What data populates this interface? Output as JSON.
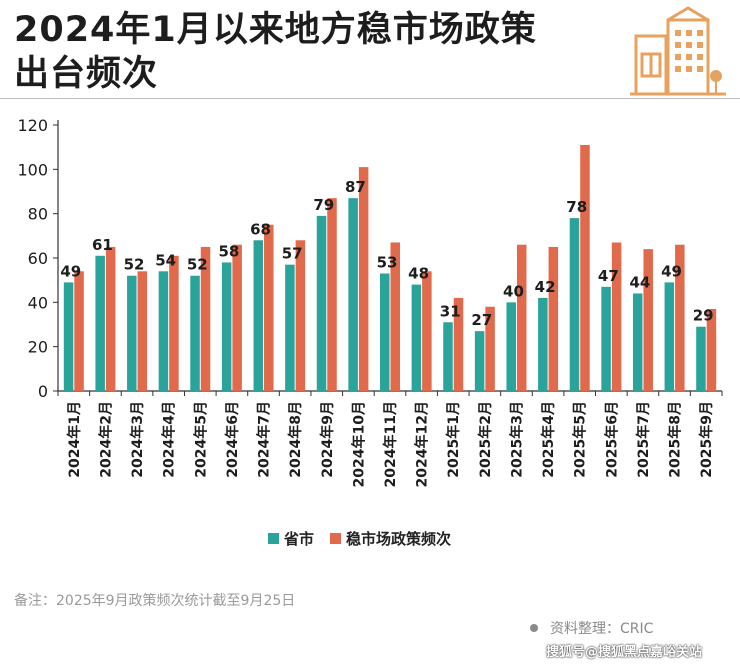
{
  "title": {
    "line1": "2024年1月以来地方稳市场政策",
    "line2": "出台频次"
  },
  "colors": {
    "teal": "#2aa39a",
    "orange": "#e06a4b",
    "logo": "#e8a25f"
  },
  "legend": {
    "series1": "省市",
    "series2": "稳市场政策频次"
  },
  "note": "备注：2025年9月政策频次统计截至9月25日",
  "source": "资料整理：CRIC",
  "watermark": "搜狐号@搜狐黑点嘉峪关站",
  "chart_data": {
    "type": "bar",
    "categories": [
      "2024年1月",
      "2024年2月",
      "2024年3月",
      "2024年4月",
      "2024年5月",
      "2024年6月",
      "2024年7月",
      "2024年8月",
      "2024年9月",
      "2024年10月",
      "2024年11月",
      "2024年12月",
      "2025年1月",
      "2025年2月",
      "2025年3月",
      "2025年4月",
      "2025年5月",
      "2025年6月",
      "2025年7月",
      "2025年8月",
      "2025年9月"
    ],
    "series": [
      {
        "name": "省市",
        "values": [
          49,
          61,
          52,
          54,
          52,
          58,
          68,
          57,
          79,
          87,
          53,
          48,
          31,
          27,
          40,
          42,
          78,
          47,
          44,
          49,
          29
        ],
        "labeled": true
      },
      {
        "name": "稳市场政策频次",
        "values": [
          54,
          65,
          54,
          61,
          65,
          66,
          75,
          68,
          87,
          101,
          67,
          54,
          42,
          38,
          66,
          65,
          111,
          67,
          64,
          66,
          37
        ],
        "labeled": false
      }
    ],
    "ylim": [
      0,
      120
    ],
    "yticks": [
      0,
      20,
      40,
      60,
      80,
      100,
      120
    ],
    "grid": false,
    "legend_position": "bottom"
  }
}
